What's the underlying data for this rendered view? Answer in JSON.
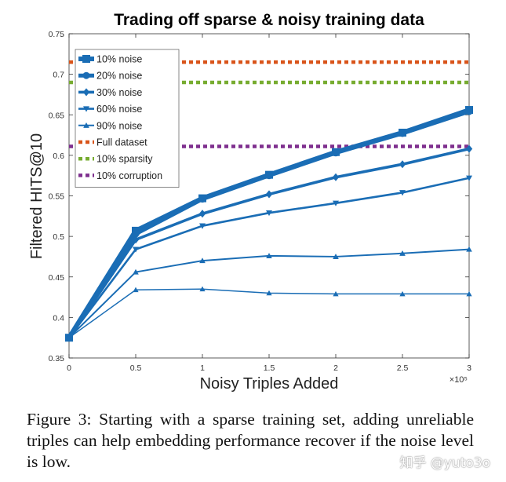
{
  "chart_data": {
    "type": "line",
    "title": "Trading off sparse & noisy training data",
    "xlabel": "Noisy Triples Added",
    "ylabel": "Filtered HITS@10",
    "x_multiplier_label": "×10⁵",
    "x": [
      0,
      0.5,
      1,
      1.5,
      2,
      2.5,
      3
    ],
    "xlim": [
      0,
      3
    ],
    "ylim": [
      0.35,
      0.75
    ],
    "x_ticks": [
      "0",
      "0.5",
      "1",
      "1.5",
      "2",
      "2.5",
      "3"
    ],
    "y_ticks": [
      "0.35",
      "0.4",
      "0.45",
      "0.5",
      "0.55",
      "0.6",
      "0.65",
      "0.7",
      "0.75"
    ],
    "grid": false,
    "legend_position": "top-left",
    "series": [
      {
        "name": "10% noise",
        "values": [
          0.375,
          0.507,
          0.547,
          0.576,
          0.604,
          0.628,
          0.656
        ],
        "marker": "square",
        "color": "#1a6db5"
      },
      {
        "name": "20% noise",
        "values": [
          0.375,
          0.503,
          0.546,
          0.575,
          0.603,
          0.627,
          0.654
        ],
        "marker": "circle",
        "color": "#1a6db5"
      },
      {
        "name": "30% noise",
        "values": [
          0.375,
          0.496,
          0.528,
          0.552,
          0.573,
          0.589,
          0.608
        ],
        "marker": "diamond",
        "color": "#1a6db5"
      },
      {
        "name": "60% noise",
        "values": [
          0.375,
          0.484,
          0.513,
          0.529,
          0.541,
          0.554,
          0.572
        ],
        "marker": "triangle-down",
        "color": "#1a6db5"
      },
      {
        "name": "90% noise",
        "values": [
          0.375,
          0.456,
          0.47,
          0.476,
          0.475,
          0.479,
          0.484
        ],
        "marker": "triangle-up",
        "color": "#1a6db5"
      },
      {
        "name": "",
        "values": [
          0.375,
          0.434,
          0.435,
          0.43,
          0.429,
          0.429,
          0.429
        ],
        "marker": "triangle-up",
        "color": "#1a6db5"
      }
    ],
    "references": [
      {
        "name": "Full dataset",
        "value": 0.715,
        "color": "#d9541a"
      },
      {
        "name": "10% sparsity",
        "value": 0.69,
        "color": "#77ac30"
      },
      {
        "name": "10% corruption",
        "value": 0.611,
        "color": "#7e2f8e"
      }
    ]
  },
  "caption": "Figure 3: Starting with a sparse training set, adding unreliable triples can help embedding performance recover if the noise level is low.",
  "watermark": "知乎 @yuto3o"
}
